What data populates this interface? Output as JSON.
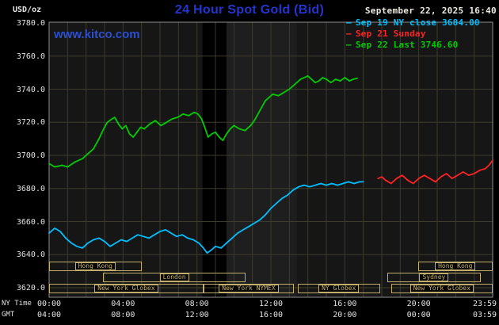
{
  "header": {
    "unit_label": "USD/oz",
    "title": "24 Hour Spot Gold (Bid)",
    "datetime": "September 22, 2025 16:40"
  },
  "watermark": "www.kitco.com",
  "legend": {
    "items": [
      {
        "label": "Sep 19 NY close 3684.00",
        "color": "#00bfff"
      },
      {
        "label": "Sep 21 Sunday",
        "color": "#ff2222"
      },
      {
        "label": "Sep 22 Last 3746.60",
        "color": "#00cc00"
      }
    ]
  },
  "axes": {
    "row1_label": "NY Time",
    "row2_label": "GMT",
    "ticks": [
      {
        "t": 0,
        "ny": "00:00",
        "gmt": "04:00"
      },
      {
        "t": 4,
        "ny": "04:00",
        "gmt": "08:00"
      },
      {
        "t": 8,
        "ny": "08:00",
        "gmt": "12:00"
      },
      {
        "t": 12,
        "ny": "12:00",
        "gmt": "16:00"
      },
      {
        "t": 16,
        "ny": "16:00",
        "gmt": "20:00"
      },
      {
        "t": 20,
        "ny": "20:00",
        "gmt": "00:00"
      },
      {
        "t": 24,
        "ny": "23:59",
        "gmt": "03:59"
      }
    ],
    "y_ticks": [
      "3780.0",
      "3760.0",
      "3740.0",
      "3720.0",
      "3700.0",
      "3680.0",
      "3660.0",
      "3640.0",
      "3620.0"
    ]
  },
  "sessions": [
    {
      "row": 0,
      "start": 0,
      "end": 5.0,
      "label": "Hong Kong"
    },
    {
      "row": 0,
      "start": 19.95,
      "end": 24,
      "label": "Hong Kong"
    },
    {
      "row": 1,
      "start": 2.9,
      "end": 10.65,
      "label": "London"
    },
    {
      "row": 1,
      "start": 18.3,
      "end": 23.35,
      "label": "Sydney"
    },
    {
      "row": 2,
      "start": 0,
      "end": 8.35,
      "label": "New York Globex"
    },
    {
      "row": 2,
      "start": 8.35,
      "end": 13.25,
      "label": "New York NYMEX"
    },
    {
      "row": 2,
      "start": 13.45,
      "end": 17.9,
      "label": "NY Globex"
    },
    {
      "row": 2,
      "start": 18.5,
      "end": 24,
      "label": "New York Globex"
    }
  ],
  "bands": [
    {
      "start": 8.3,
      "end": 9.6,
      "color": "#000000"
    },
    {
      "start": 9.6,
      "end": 13.4,
      "color": "#1e1e1e"
    }
  ],
  "colors": {
    "background": "#000000",
    "plot_bg": "#161616",
    "grid": "#3c3b2c",
    "plot_border": "#8f8f8f",
    "title_blue": "#2435cf",
    "kitco_blue": "#2b4fd0",
    "text_white": "#e2e2e2",
    "session_tan": "#c0ae6a"
  },
  "chart_data": {
    "type": "line",
    "title": "24 Hour Spot Gold (Bid)",
    "ylabel": "USD/oz",
    "x_unit": "NY time (hours)",
    "xlim": [
      0,
      24
    ],
    "ylim": [
      3620,
      3780
    ],
    "grid": true,
    "legend_position": "top-right",
    "series": [
      {
        "name": "Sep 19 NY close 3684.00",
        "color": "#00bfff",
        "points": [
          [
            0,
            3653
          ],
          [
            0.3,
            3656
          ],
          [
            0.6,
            3654
          ],
          [
            0.9,
            3650
          ],
          [
            1.2,
            3647
          ],
          [
            1.5,
            3645
          ],
          [
            1.8,
            3644
          ],
          [
            2.1,
            3647
          ],
          [
            2.4,
            3649
          ],
          [
            2.7,
            3650
          ],
          [
            3,
            3648
          ],
          [
            3.3,
            3645
          ],
          [
            3.6,
            3647
          ],
          [
            3.9,
            3649
          ],
          [
            4.2,
            3648
          ],
          [
            4.5,
            3650
          ],
          [
            4.8,
            3652
          ],
          [
            5.1,
            3651
          ],
          [
            5.4,
            3650
          ],
          [
            5.7,
            3652
          ],
          [
            6,
            3654
          ],
          [
            6.3,
            3655
          ],
          [
            6.6,
            3653
          ],
          [
            6.9,
            3651
          ],
          [
            7.2,
            3652
          ],
          [
            7.5,
            3650
          ],
          [
            7.8,
            3649
          ],
          [
            8.1,
            3647
          ],
          [
            8.35,
            3644
          ],
          [
            8.55,
            3641
          ],
          [
            8.8,
            3643
          ],
          [
            9,
            3645
          ],
          [
            9.3,
            3644
          ],
          [
            9.6,
            3647
          ],
          [
            9.9,
            3650
          ],
          [
            10.2,
            3653
          ],
          [
            10.5,
            3655
          ],
          [
            10.8,
            3657
          ],
          [
            11.1,
            3659
          ],
          [
            11.4,
            3661
          ],
          [
            11.7,
            3664
          ],
          [
            12,
            3668
          ],
          [
            12.3,
            3671
          ],
          [
            12.6,
            3674
          ],
          [
            12.9,
            3676
          ],
          [
            13.2,
            3679
          ],
          [
            13.5,
            3681
          ],
          [
            13.8,
            3682
          ],
          [
            14.1,
            3681
          ],
          [
            14.4,
            3682
          ],
          [
            14.7,
            3683
          ],
          [
            15,
            3682
          ],
          [
            15.3,
            3683
          ],
          [
            15.6,
            3682
          ],
          [
            15.9,
            3683
          ],
          [
            16.2,
            3684
          ],
          [
            16.5,
            3683
          ],
          [
            16.8,
            3684
          ],
          [
            17,
            3684
          ]
        ]
      },
      {
        "name": "Sep 21 Sunday",
        "color": "#ff2222",
        "points": [
          [
            17.8,
            3686
          ],
          [
            18,
            3687
          ],
          [
            18.2,
            3685
          ],
          [
            18.5,
            3683
          ],
          [
            18.8,
            3686
          ],
          [
            19.1,
            3688
          ],
          [
            19.4,
            3685
          ],
          [
            19.7,
            3683
          ],
          [
            20,
            3686
          ],
          [
            20.3,
            3688
          ],
          [
            20.6,
            3686
          ],
          [
            20.9,
            3684
          ],
          [
            21.2,
            3687
          ],
          [
            21.5,
            3689
          ],
          [
            21.8,
            3686
          ],
          [
            22.1,
            3688
          ],
          [
            22.4,
            3690
          ],
          [
            22.7,
            3688
          ],
          [
            23,
            3689
          ],
          [
            23.3,
            3691
          ],
          [
            23.6,
            3692
          ],
          [
            23.8,
            3694
          ],
          [
            24,
            3697
          ]
        ]
      },
      {
        "name": "Sep 22 Last 3746.60",
        "color": "#00cc00",
        "points": [
          [
            0,
            3695
          ],
          [
            0.3,
            3693
          ],
          [
            0.7,
            3694
          ],
          [
            1,
            3693
          ],
          [
            1.4,
            3696
          ],
          [
            1.8,
            3698
          ],
          [
            2.1,
            3701
          ],
          [
            2.4,
            3704
          ],
          [
            2.7,
            3710
          ],
          [
            2.95,
            3716
          ],
          [
            3.15,
            3720
          ],
          [
            3.4,
            3722
          ],
          [
            3.55,
            3723
          ],
          [
            3.75,
            3719
          ],
          [
            3.95,
            3716
          ],
          [
            4.15,
            3718
          ],
          [
            4.35,
            3713
          ],
          [
            4.55,
            3711
          ],
          [
            4.75,
            3714
          ],
          [
            4.95,
            3717
          ],
          [
            5.15,
            3716
          ],
          [
            5.45,
            3719
          ],
          [
            5.75,
            3721
          ],
          [
            6.05,
            3718
          ],
          [
            6.35,
            3720
          ],
          [
            6.65,
            3722
          ],
          [
            6.95,
            3723
          ],
          [
            7.25,
            3725
          ],
          [
            7.55,
            3724
          ],
          [
            7.85,
            3726
          ],
          [
            8.05,
            3725
          ],
          [
            8.25,
            3722
          ],
          [
            8.45,
            3716
          ],
          [
            8.6,
            3711
          ],
          [
            8.8,
            3713
          ],
          [
            9,
            3714
          ],
          [
            9.2,
            3711
          ],
          [
            9.4,
            3709
          ],
          [
            9.6,
            3713
          ],
          [
            9.8,
            3716
          ],
          [
            10,
            3718
          ],
          [
            10.3,
            3716
          ],
          [
            10.6,
            3715
          ],
          [
            10.9,
            3718
          ],
          [
            11.1,
            3721
          ],
          [
            11.3,
            3725
          ],
          [
            11.5,
            3729
          ],
          [
            11.7,
            3733
          ],
          [
            11.9,
            3735
          ],
          [
            12.1,
            3737
          ],
          [
            12.4,
            3736
          ],
          [
            12.7,
            3738
          ],
          [
            13,
            3740
          ],
          [
            13.2,
            3742
          ],
          [
            13.4,
            3744
          ],
          [
            13.6,
            3746
          ],
          [
            13.8,
            3747
          ],
          [
            14,
            3748
          ],
          [
            14.2,
            3746
          ],
          [
            14.4,
            3744
          ],
          [
            14.6,
            3745
          ],
          [
            14.8,
            3747
          ],
          [
            15,
            3746
          ],
          [
            15.25,
            3744
          ],
          [
            15.5,
            3746
          ],
          [
            15.75,
            3745
          ],
          [
            16,
            3747
          ],
          [
            16.25,
            3745
          ],
          [
            16.45,
            3746
          ],
          [
            16.67,
            3746.6
          ]
        ]
      }
    ]
  }
}
